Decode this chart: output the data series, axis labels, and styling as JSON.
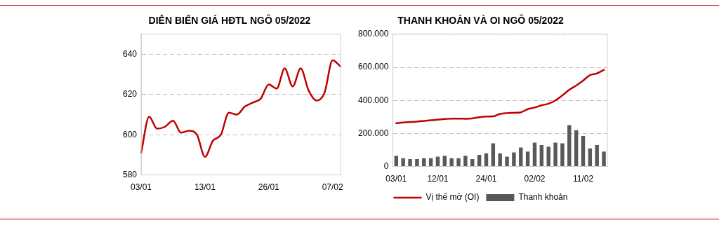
{
  "chart_data": [
    {
      "type": "line",
      "title": "DIỄN BIẾN GIÁ HĐTL NGÔ 05/2022",
      "categories": [
        "03/01",
        null,
        null,
        null,
        null,
        null,
        null,
        null,
        "13/01",
        null,
        null,
        null,
        null,
        null,
        null,
        null,
        "26/01",
        null,
        null,
        null,
        null,
        null,
        null,
        null,
        "07/02",
        null
      ],
      "series": [
        {
          "color": "#c00000",
          "values": [
            591,
            609,
            603,
            604,
            607,
            601,
            602,
            600,
            589,
            597,
            600,
            611,
            610,
            614,
            616,
            618,
            625,
            623,
            633,
            624,
            633,
            622,
            617,
            621,
            637,
            634
          ]
        }
      ],
      "ylim": [
        580,
        650
      ],
      "yticks": [
        580,
        600,
        620,
        640
      ],
      "grid": "y",
      "legend": false,
      "marker": "none",
      "line_style": "solid"
    },
    {
      "type": "bar",
      "title": "THANH KHOẢN VÀ OI NGÔ 05/2022",
      "categories": [
        "03/01",
        null,
        null,
        null,
        null,
        null,
        "12/01",
        null,
        null,
        null,
        null,
        null,
        null,
        "24/01",
        null,
        null,
        null,
        null,
        null,
        null,
        "02/02",
        null,
        null,
        null,
        null,
        null,
        null,
        "11/02",
        null,
        null,
        null
      ],
      "series": [
        {
          "name": "Thanh khoản",
          "type": "bar",
          "color": "#595959",
          "values": [
            65000,
            50000,
            45000,
            45000,
            50000,
            50000,
            60000,
            65000,
            50000,
            50000,
            65000,
            45000,
            70000,
            80000,
            140000,
            80000,
            60000,
            85000,
            115000,
            90000,
            145000,
            130000,
            120000,
            145000,
            140000,
            250000,
            220000,
            185000,
            110000,
            130000,
            90000
          ]
        },
        {
          "name": "Vị thế mở (OI)",
          "type": "line",
          "color": "#c00000",
          "values": [
            262000,
            266000,
            269000,
            272000,
            276000,
            280000,
            283000,
            287000,
            290000,
            290000,
            289000,
            291000,
            298000,
            302000,
            303000,
            318000,
            323000,
            325000,
            328000,
            347000,
            357000,
            370000,
            380000,
            400000,
            430000,
            464000,
            490000,
            520000,
            553000,
            563000,
            585000
          ]
        }
      ],
      "ylim": [
        0,
        800000
      ],
      "yticks": [
        {
          "value": 0,
          "label": "0"
        },
        {
          "value": 200000,
          "label": "200.000"
        },
        {
          "value": 400000,
          "label": "400.000"
        },
        {
          "value": 600000,
          "label": "600.000"
        },
        {
          "value": 800000,
          "label": "800.000"
        }
      ],
      "grid": "y",
      "legend": "bottom",
      "marker": "none",
      "line_style": "solid"
    }
  ]
}
